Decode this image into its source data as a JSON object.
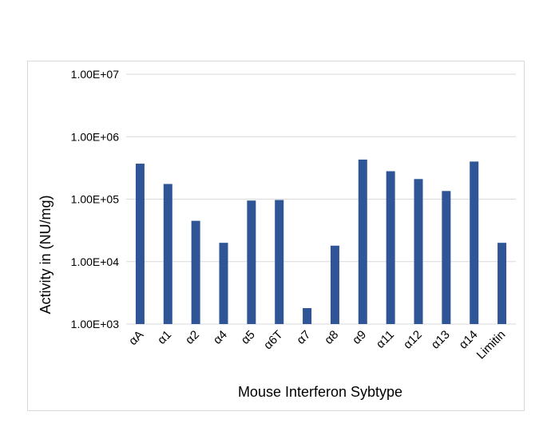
{
  "chart_data": {
    "type": "bar",
    "title": "",
    "xlabel": "Mouse Interferon Sybtype",
    "ylabel": "Activity in (NU/mg)",
    "yscale": "log",
    "ylim": [
      1000,
      10000000
    ],
    "yticks": [
      1000,
      10000,
      100000,
      1000000,
      10000000
    ],
    "ytick_labels": [
      "1.00E+03",
      "1.00E+04",
      "1.00E+05",
      "1.00E+06",
      "1.00E+07"
    ],
    "grid": true,
    "legend": "none",
    "bar_color": "#2f5597",
    "categories": [
      "αA",
      "α1",
      "α2",
      "α4",
      "α5",
      "α6T",
      "α7",
      "α8",
      "α9",
      "α11",
      "α12",
      "α13",
      "α14",
      "Limitin"
    ],
    "values": [
      370000,
      175000,
      45000,
      20000,
      95000,
      97000,
      1800,
      18000,
      430000,
      280000,
      210000,
      135000,
      400000,
      20000
    ]
  }
}
